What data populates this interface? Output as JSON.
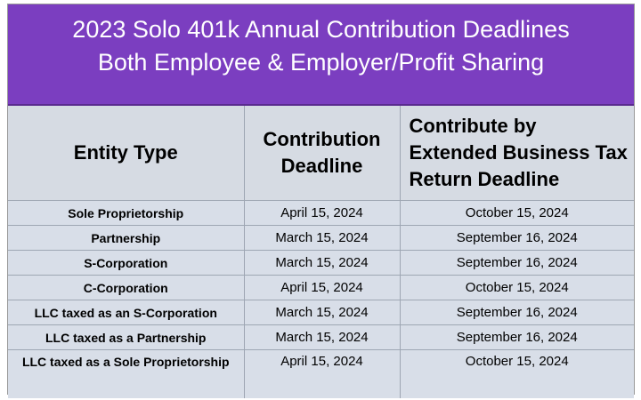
{
  "title": {
    "line1": "2023 Solo 401k Annual Contribution Deadlines",
    "line2": "Both Employee & Employer/Profit Sharing"
  },
  "columns": [
    "Entity Type",
    "Contribution Deadline",
    "Contribute by Extended Business Tax Return Deadline"
  ],
  "rows": [
    {
      "entity": "Sole Proprietorship",
      "deadline": "April 15, 2024",
      "extended": "October 15, 2024"
    },
    {
      "entity": "Partnership",
      "deadline": "March 15, 2024",
      "extended": "September 16, 2024"
    },
    {
      "entity": "S-Corporation",
      "deadline": "March 15, 2024",
      "extended": "September 16, 2024"
    },
    {
      "entity": "C-Corporation",
      "deadline": "April 15, 2024",
      "extended": "October 15, 2024"
    },
    {
      "entity": "LLC taxed as an S-Corporation",
      "deadline": "March 15, 2024",
      "extended": "September 16, 2024"
    },
    {
      "entity": "LLC taxed as a Partnership",
      "deadline": "March 15, 2024",
      "extended": "September 16, 2024"
    },
    {
      "entity": "LLC taxed as a Sole Proprietorship",
      "deadline": "April 15, 2024",
      "extended": "October 15, 2024"
    }
  ],
  "colors": {
    "title_background": "#7b3ec0",
    "title_text": "#ffffff",
    "table_background": "#d8dee8",
    "grid_lines": "#9ea6b3"
  }
}
